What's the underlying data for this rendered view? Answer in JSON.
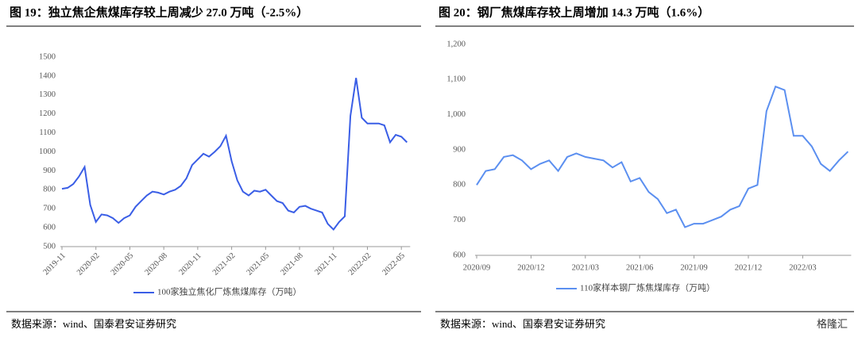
{
  "chart_data": [
    {
      "type": "line",
      "title": "图 19：独立焦企焦煤库存较上周减少 27.0 万吨（-2.5%）",
      "source": "数据来源：wind、国泰君安证券研究",
      "categories": [
        "2019-11",
        null,
        null,
        null,
        null,
        null,
        "2020-02",
        null,
        null,
        null,
        null,
        null,
        "2020-05",
        null,
        null,
        null,
        null,
        null,
        "2020-08",
        null,
        null,
        null,
        null,
        null,
        "2020-11",
        null,
        null,
        null,
        null,
        null,
        "2021-02",
        null,
        null,
        null,
        null,
        null,
        "2021-05",
        null,
        null,
        null,
        null,
        null,
        "2021-08",
        null,
        null,
        null,
        null,
        null,
        "2021-11",
        null,
        null,
        null,
        null,
        null,
        "2022-02",
        null,
        null,
        null,
        null,
        null,
        "2022-05",
        null
      ],
      "series": [
        {
          "name": "100家独立焦化厂炼焦煤库存（万吨）",
          "color": "#3a5ee6",
          "values": [
            805,
            810,
            830,
            870,
            920,
            720,
            630,
            670,
            665,
            650,
            625,
            650,
            665,
            710,
            740,
            770,
            790,
            785,
            775,
            790,
            800,
            820,
            860,
            930,
            960,
            990,
            975,
            1000,
            1030,
            1085,
            950,
            850,
            790,
            770,
            795,
            790,
            800,
            770,
            740,
            730,
            690,
            680,
            710,
            715,
            700,
            690,
            680,
            620,
            590,
            630,
            660,
            1190,
            1390,
            1180,
            1150,
            1150,
            1150,
            1140,
            1050,
            1090,
            1080,
            1050
          ]
        }
      ],
      "ylim": [
        500,
        1500
      ],
      "yticks": [
        500,
        600,
        700,
        800,
        900,
        1000,
        1100,
        1200,
        1300,
        1400,
        1500
      ]
    },
    {
      "type": "line",
      "title": "图 20：钢厂焦煤库存较上周增加 14.3 万吨（1.6%）",
      "source": "数据来源：wind、国泰君安证券研究",
      "watermark": "格隆汇",
      "categories": [
        "2020/09",
        null,
        null,
        null,
        null,
        null,
        "2020/12",
        null,
        null,
        null,
        null,
        null,
        "2021/03",
        null,
        null,
        null,
        null,
        null,
        "2021/06",
        null,
        null,
        null,
        null,
        null,
        "2021/09",
        null,
        null,
        null,
        null,
        null,
        "2021/12",
        null,
        null,
        null,
        null,
        null,
        "2022/03",
        null,
        null,
        null,
        null,
        null
      ],
      "series": [
        {
          "name": "110家样本钢厂炼焦煤库存（万吨）",
          "color": "#5b8ff0",
          "values": [
            800,
            840,
            845,
            880,
            885,
            870,
            845,
            860,
            870,
            840,
            880,
            890,
            880,
            875,
            870,
            850,
            865,
            810,
            820,
            780,
            760,
            720,
            730,
            680,
            690,
            690,
            700,
            710,
            730,
            740,
            790,
            800,
            1010,
            1080,
            1070,
            940,
            940,
            910,
            860,
            840,
            870,
            895
          ]
        }
      ],
      "ylim": [
        600,
        1200
      ],
      "yticks": [
        {
          "value": 600,
          "label": "600"
        },
        {
          "value": 700,
          "label": "700"
        },
        {
          "value": 800,
          "label": "800"
        },
        {
          "value": 900,
          "label": "900"
        },
        {
          "value": 1000,
          "label": "1,000"
        },
        {
          "value": 1100,
          "label": "1,100"
        },
        {
          "value": 1200,
          "label": "1,200"
        }
      ]
    }
  ]
}
